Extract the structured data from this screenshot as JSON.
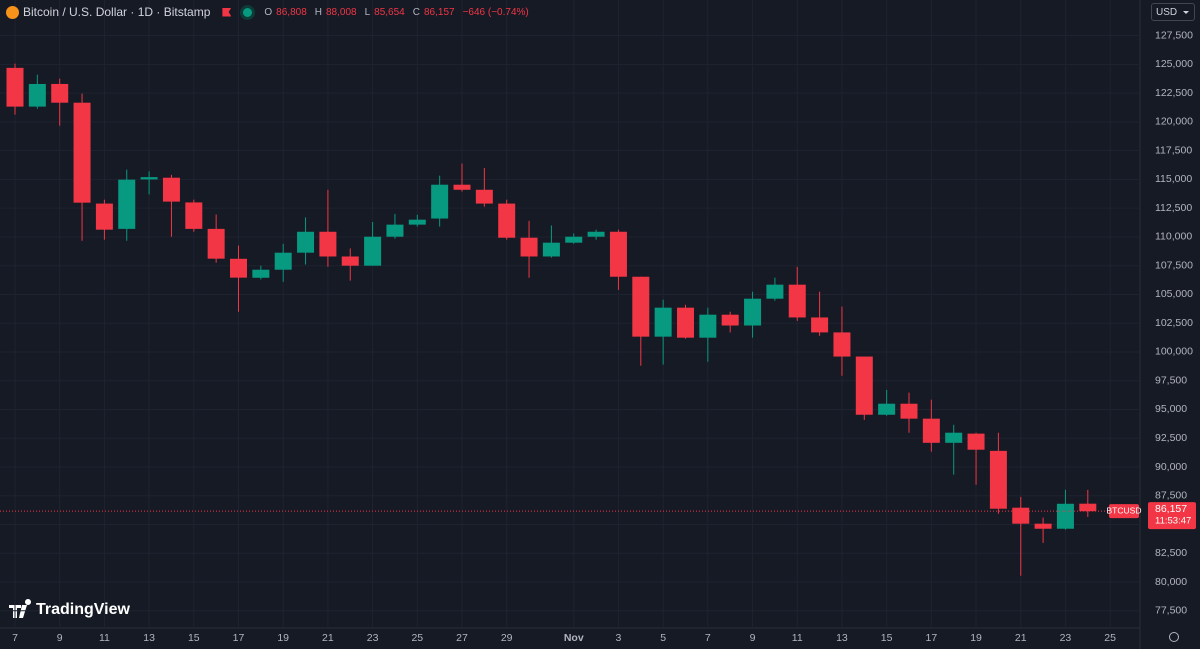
{
  "header": {
    "symbol": "Bitcoin / U.S. Dollar · 1D · Bitstamp",
    "open_label": "O",
    "open": "86,808",
    "high_label": "H",
    "high": "88,008",
    "low_label": "L",
    "low": "85,654",
    "close_label": "C",
    "close": "86,157",
    "change": "−646 (−0.74%)"
  },
  "currency": "USD",
  "logo": "TradingView",
  "price_tag": {
    "symbol": "BTCUSD",
    "price": "86,157",
    "countdown": "11:53:47"
  },
  "chart_data": {
    "type": "candlestick",
    "categories": [
      "7",
      null,
      "9",
      null,
      "11",
      null,
      "13",
      null,
      "15",
      null,
      "17",
      null,
      "19",
      null,
      "21",
      null,
      "23",
      null,
      "25",
      null,
      "27",
      null,
      "29",
      null,
      null,
      "Nov",
      null,
      "3",
      null,
      "5",
      null,
      "7",
      null,
      "9",
      null,
      "11",
      null,
      "13",
      null,
      "15",
      null,
      "17",
      null,
      "19",
      null,
      "21",
      null,
      "23",
      null,
      "25"
    ],
    "open": [
      124700,
      121330,
      123300,
      121670,
      112900,
      110700,
      115000,
      115150,
      113000,
      110700,
      108100,
      106450,
      107150,
      108630,
      110450,
      108300,
      107500,
      110020,
      111070,
      111600,
      114540,
      114100,
      112900,
      109930,
      108300,
      109500,
      110020,
      110450,
      106540,
      101330,
      103850,
      101240,
      103240,
      102300,
      104630,
      105850,
      103000,
      101700,
      99600,
      94540,
      95500,
      94200,
      92100,
      92900,
      91400,
      86460,
      85070,
      84630,
      86808,
      null
    ],
    "high": [
      125070,
      124110,
      123760,
      122460,
      113240,
      115850,
      115700,
      115400,
      113240,
      111950,
      109240,
      107500,
      109400,
      111700,
      114100,
      109000,
      111300,
      112000,
      111930,
      115330,
      116370,
      116000,
      113240,
      111400,
      111000,
      110300,
      110630,
      110630,
      106540,
      104540,
      104100,
      103850,
      103500,
      105240,
      106460,
      107400,
      105240,
      103950,
      99600,
      96700,
      96460,
      95850,
      93670,
      92980,
      92980,
      87400,
      85600,
      88020,
      88008,
      null
    ],
    "low": [
      120630,
      121150,
      119670,
      109670,
      109760,
      109670,
      113700,
      110020,
      110450,
      107760,
      103500,
      106300,
      106100,
      107600,
      107400,
      106200,
      107500,
      109850,
      110900,
      110900,
      113940,
      112630,
      109760,
      106450,
      108200,
      109400,
      109760,
      105400,
      98800,
      98900,
      101150,
      99150,
      101700,
      101240,
      104460,
      102700,
      101400,
      97930,
      94100,
      94450,
      92980,
      91330,
      89330,
      88460,
      85930,
      80540,
      83400,
      84540,
      85654,
      null
    ],
    "close": [
      121330,
      123300,
      121670,
      112980,
      110630,
      114980,
      115200,
      113070,
      110700,
      108110,
      106460,
      107150,
      108630,
      110450,
      108300,
      107500,
      110020,
      111070,
      111500,
      114540,
      114100,
      112900,
      109930,
      108300,
      109500,
      110020,
      110450,
      106540,
      101330,
      103850,
      101240,
      103240,
      102300,
      104630,
      105850,
      103000,
      101700,
      99600,
      94540,
      95500,
      94200,
      92100,
      92980,
      91500,
      86370,
      85070,
      84630,
      86800,
      86157,
      null
    ],
    "up_color": "#089981",
    "down_color": "#f23645",
    "ylim": [
      76000,
      130600
    ],
    "yticks": [
      {
        "value": 77500,
        "label": "77,500"
      },
      {
        "value": 80000,
        "label": "80,000"
      },
      {
        "value": 82500,
        "label": "82,500"
      },
      {
        "value": 85000,
        "label": "85,000"
      },
      {
        "value": 87500,
        "label": "87,500"
      },
      {
        "value": 90000,
        "label": "90,000"
      },
      {
        "value": 92500,
        "label": "92,500"
      },
      {
        "value": 95000,
        "label": "95,000"
      },
      {
        "value": 97500,
        "label": "97,500"
      },
      {
        "value": 100000,
        "label": "100,000"
      },
      {
        "value": 102500,
        "label": "102,500"
      },
      {
        "value": 105000,
        "label": "105,000"
      },
      {
        "value": 107500,
        "label": "107,500"
      },
      {
        "value": 110000,
        "label": "110,000"
      },
      {
        "value": 112500,
        "label": "112,500"
      },
      {
        "value": 115000,
        "label": "115,000"
      },
      {
        "value": 117500,
        "label": "117,500"
      },
      {
        "value": 120000,
        "label": "120,000"
      },
      {
        "value": 122500,
        "label": "122,500"
      },
      {
        "value": 125000,
        "label": "125,000"
      },
      {
        "value": 127500,
        "label": "127,500"
      }
    ],
    "grid": true
  }
}
